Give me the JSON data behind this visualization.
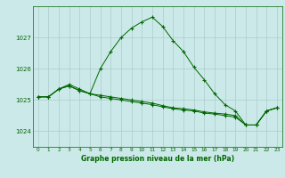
{
  "background_color": "#cce9e9",
  "plot_bg_color": "#cce9e9",
  "grid_color": "#aacccc",
  "line_color": "#006600",
  "marker_color": "#006600",
  "xlabel": "Graphe pression niveau de la mer (hPa)",
  "xlim": [
    -0.5,
    23.5
  ],
  "ylim": [
    1023.5,
    1028.0
  ],
  "yticks": [
    1024,
    1025,
    1026,
    1027
  ],
  "xticks": [
    0,
    1,
    2,
    3,
    4,
    5,
    6,
    7,
    8,
    9,
    10,
    11,
    12,
    13,
    14,
    15,
    16,
    17,
    18,
    19,
    20,
    21,
    22,
    23
  ],
  "series": [
    {
      "x": [
        0,
        1,
        2,
        3,
        4,
        5,
        6,
        7,
        8,
        9,
        10,
        11,
        12,
        13,
        14,
        15,
        16,
        17,
        18,
        19,
        20,
        21,
        22,
        23
      ],
      "y": [
        1025.1,
        1025.1,
        1025.35,
        1025.5,
        1025.35,
        1025.2,
        1026.0,
        1026.55,
        1027.0,
        1027.3,
        1027.5,
        1027.65,
        1027.35,
        1026.9,
        1026.55,
        1026.05,
        1025.65,
        1025.2,
        1024.85,
        1024.65,
        1024.2,
        1024.2,
        1024.65,
        1024.75
      ]
    },
    {
      "x": [
        0,
        1,
        2,
        3,
        4,
        5,
        6,
        7,
        8,
        9,
        10,
        11,
        12,
        13,
        14,
        15,
        16,
        17,
        18,
        19,
        20,
        21,
        22,
        23
      ],
      "y": [
        1025.1,
        1025.1,
        1025.35,
        1025.45,
        1025.3,
        1025.2,
        1025.15,
        1025.1,
        1025.05,
        1025.0,
        1024.95,
        1024.9,
        1024.82,
        1024.75,
        1024.72,
        1024.68,
        1024.62,
        1024.58,
        1024.55,
        1024.5,
        1024.2,
        1024.2,
        1024.65,
        1024.75
      ]
    },
    {
      "x": [
        0,
        1,
        2,
        3,
        4,
        5,
        6,
        7,
        8,
        9,
        10,
        11,
        12,
        13,
        14,
        15,
        16,
        17,
        18,
        19,
        20,
        21,
        22,
        23
      ],
      "y": [
        1025.1,
        1025.1,
        1025.35,
        1025.45,
        1025.3,
        1025.2,
        1025.1,
        1025.05,
        1025.0,
        1024.95,
        1024.9,
        1024.85,
        1024.78,
        1024.72,
        1024.68,
        1024.65,
        1024.58,
        1024.55,
        1024.5,
        1024.45,
        1024.2,
        1024.2,
        1024.65,
        1024.75
      ]
    }
  ]
}
